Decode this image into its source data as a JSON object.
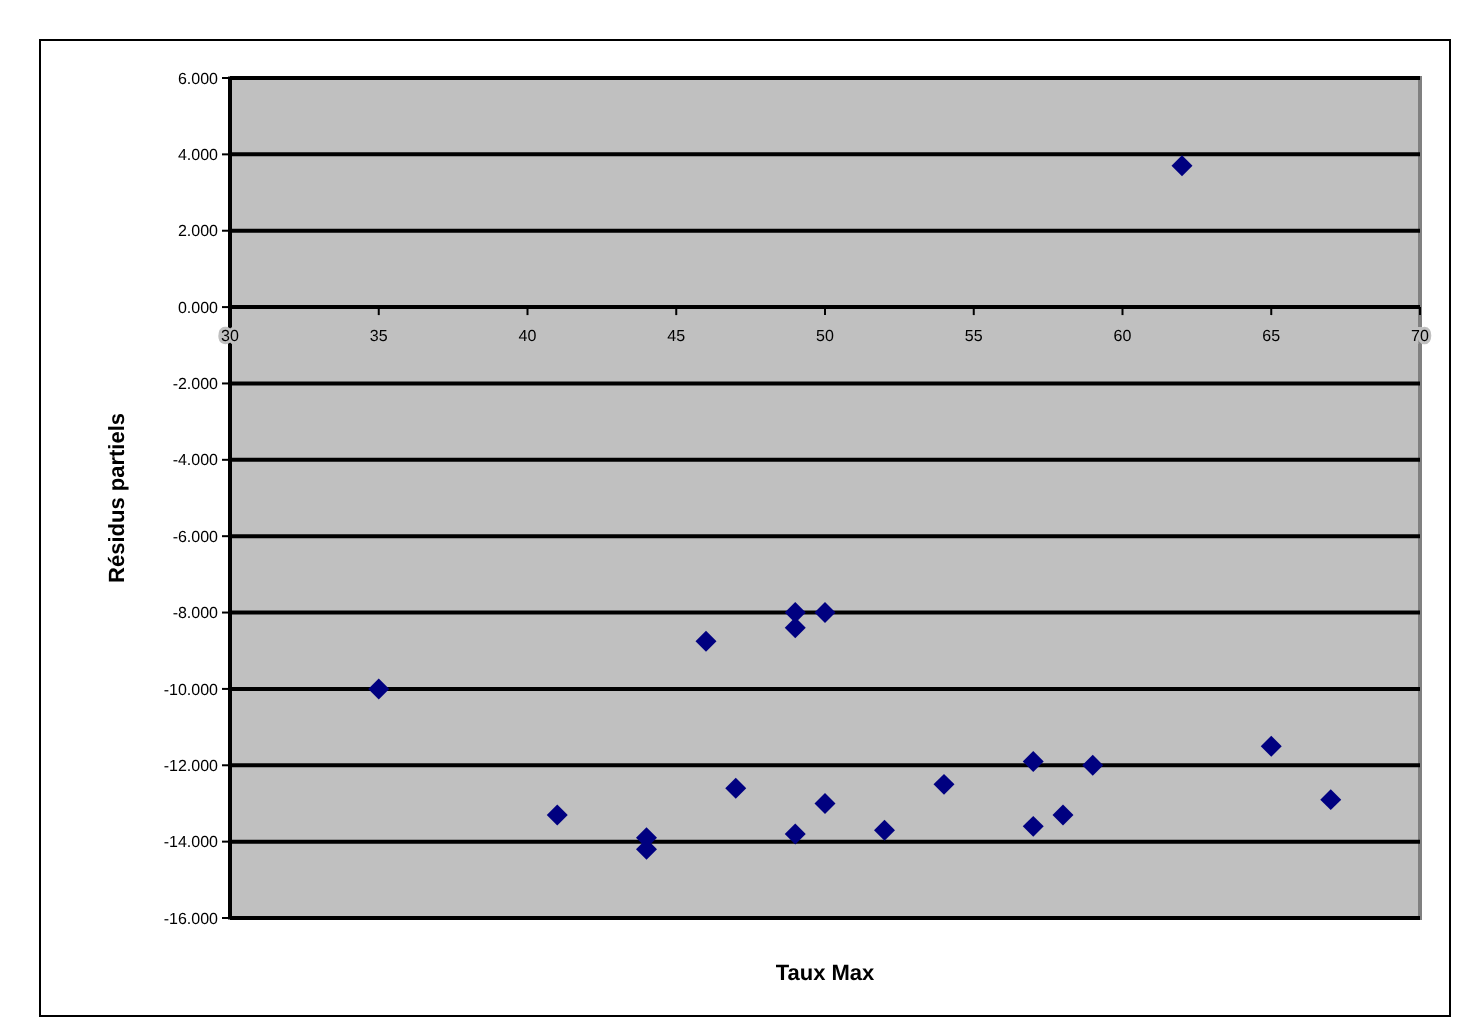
{
  "chart_data": {
    "type": "scatter",
    "xlabel": "Taux Max",
    "ylabel": "Résidus partiels",
    "x": [
      35,
      41,
      44,
      44,
      46,
      47,
      49,
      49,
      49,
      50,
      50,
      52,
      54,
      57,
      57,
      58,
      59,
      62,
      65,
      67
    ],
    "series": [
      {
        "color": "#000080",
        "values": [
          -10.0,
          -13.3,
          -13.9,
          -14.2,
          -8.75,
          -12.6,
          -8.0,
          -8.4,
          -13.8,
          -8.0,
          -13.0,
          -13.7,
          -12.5,
          -11.9,
          -13.6,
          -13.3,
          -12.0,
          3.7,
          -11.5,
          -12.9
        ]
      }
    ],
    "xlim": [
      30,
      70
    ],
    "xticks": [
      30,
      35,
      40,
      45,
      50,
      55,
      60,
      65,
      70
    ],
    "ylim": [
      -16,
      6
    ],
    "yticks": [
      {
        "value": -16,
        "label": "-16.000"
      },
      {
        "value": -14,
        "label": "-14.000"
      },
      {
        "value": -12,
        "label": "-12.000"
      },
      {
        "value": -10,
        "label": "-10.000"
      },
      {
        "value": -8,
        "label": "-8.000"
      },
      {
        "value": -6,
        "label": "-6.000"
      },
      {
        "value": -4,
        "label": "-4.000"
      },
      {
        "value": -2,
        "label": "-2.000"
      },
      {
        "value": 0,
        "label": "0.000"
      },
      {
        "value": 2,
        "label": "2.000"
      },
      {
        "value": 4,
        "label": "4.000"
      },
      {
        "value": 6,
        "label": "6.000"
      }
    ],
    "grid": "y",
    "marker": "diamond"
  }
}
